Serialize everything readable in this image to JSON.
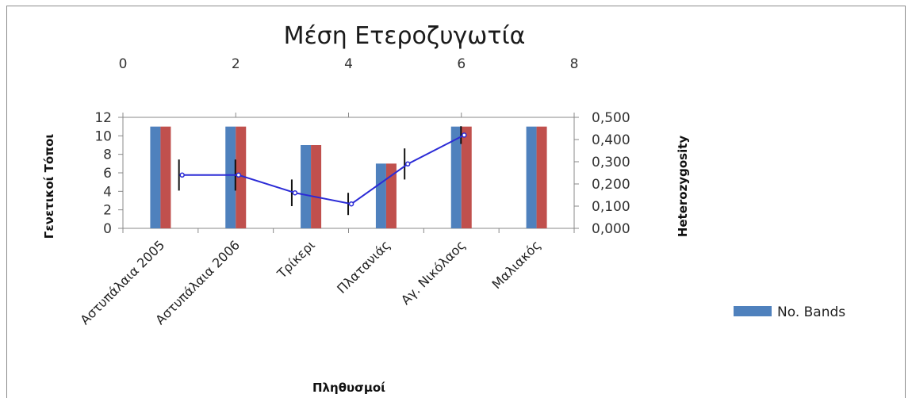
{
  "chart_data": {
    "type": "bar",
    "title": "Μέση Ετεροζυγωτία",
    "categories": [
      "Αστυπάλαια 2005",
      "Αστυπάλαια 2006",
      "Τρίκερι",
      "Πλατανιάς",
      "Αγ. Νικόλαος",
      "Μαλιακός"
    ],
    "xlabel": "Πληθυσμοί",
    "ylabel": "Γενετικοί Τόποι",
    "y2label": "Heterozygosity",
    "ylim": [
      0,
      12
    ],
    "y_ticks": [
      "0",
      "2",
      "4",
      "6",
      "8",
      "10",
      "12"
    ],
    "y2lim": [
      0,
      0.5
    ],
    "y2_ticks": [
      "0,000",
      "0,100",
      "0,200",
      "0,300",
      "0,400",
      "0,500"
    ],
    "x2lim": [
      0,
      8
    ],
    "x2_ticks": [
      "0",
      "2",
      "4",
      "6",
      "8"
    ],
    "series": [
      {
        "name": "No. Bands",
        "kind": "bar",
        "color": "#4f81bd",
        "values": [
          11,
          11,
          9,
          7,
          11,
          11
        ]
      },
      {
        "kind": "bar",
        "color": "#c0504d",
        "values": [
          11,
          11,
          9,
          7,
          11,
          11
        ]
      },
      {
        "kind": "line",
        "axis": "secondary",
        "color": "#2b2bd6",
        "x": [
          1.05,
          2.05,
          3.05,
          4.05,
          5.05,
          6.05
        ],
        "values": [
          0.24,
          0.24,
          0.16,
          0.11,
          0.29,
          0.42
        ],
        "error": [
          0.07,
          0.07,
          0.06,
          0.05,
          0.07,
          0.04
        ]
      }
    ],
    "legend": {
      "position": "right",
      "entries": [
        "No. Bands"
      ]
    },
    "grid": false
  }
}
